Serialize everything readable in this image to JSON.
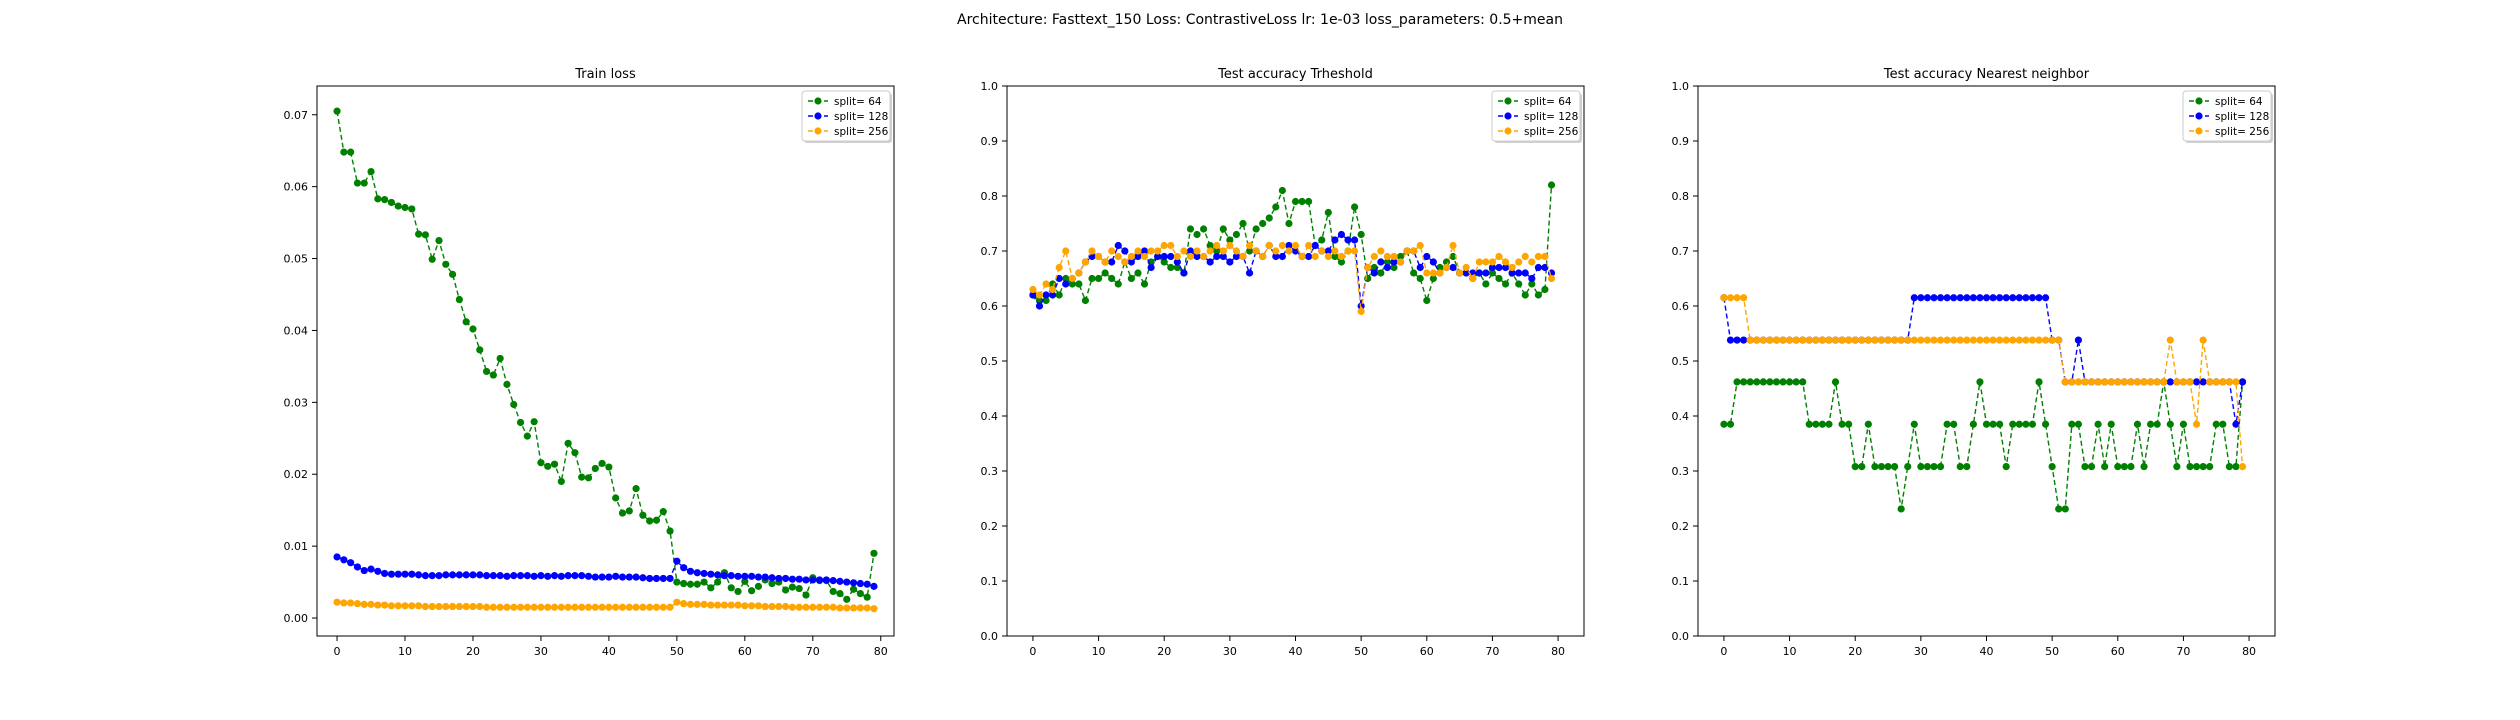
{
  "suptitle": "Architecture: Fasttext_150 Loss: ContrastiveLoss lr: 1e-03 loss_parameters: 0.5+mean",
  "colors": {
    "split64": "#008000",
    "split128": "#0000ff",
    "split256": "#ffa500"
  },
  "chart_data": [
    {
      "type": "line",
      "title": "Train loss",
      "xlabel": "",
      "ylabel": "",
      "xlim": [
        -2.95,
        81.95
      ],
      "ylim": [
        -0.0025,
        0.074
      ],
      "xticks": [
        0,
        10,
        20,
        30,
        40,
        50,
        60,
        70,
        80
      ],
      "xtick_labels": [
        "0",
        "10",
        "20",
        "30",
        "40",
        "50",
        "60",
        "70",
        "80"
      ],
      "yticks": [
        0.0,
        0.01,
        0.02,
        0.03,
        0.04,
        0.05,
        0.06,
        0.07
      ],
      "ytick_labels": [
        "0.00",
        "0.01",
        "0.02",
        "0.03",
        "0.04",
        "0.05",
        "0.06",
        "0.07"
      ],
      "legend": "upper right",
      "series": [
        {
          "name": "split= 64",
          "color": "#008000",
          "marker": "circle",
          "linestyle": "dashed",
          "values": [
            0.0705,
            0.0648,
            0.0648,
            0.0605,
            0.0605,
            0.0621,
            0.0583,
            0.0582,
            0.0578,
            0.0573,
            0.0571,
            0.0569,
            0.0534,
            0.0533,
            0.0499,
            0.0525,
            0.0492,
            0.0478,
            0.0443,
            0.0412,
            0.0402,
            0.0373,
            0.0343,
            0.0338,
            0.0361,
            0.0325,
            0.0297,
            0.0272,
            0.0253,
            0.0273,
            0.0216,
            0.0211,
            0.0214,
            0.019,
            0.0243,
            0.023,
            0.0196,
            0.0195,
            0.0208,
            0.0215,
            0.021,
            0.0167,
            0.0146,
            0.0149,
            0.018,
            0.0143,
            0.0135,
            0.0136,
            0.0148,
            0.0121,
            0.005,
            0.0048,
            0.0047,
            0.0047,
            0.005,
            0.0042,
            0.005,
            0.0063,
            0.0042,
            0.0037,
            0.0051,
            0.0038,
            0.0044,
            0.0053,
            0.0048,
            0.005,
            0.0039,
            0.0043,
            0.0041,
            0.0032,
            0.0056,
            0.0052,
            0.0052,
            0.0037,
            0.0034,
            0.0026,
            0.004,
            0.0034,
            0.0029,
            0.009
          ]
        },
        {
          "name": "split= 128",
          "color": "#0000ff",
          "marker": "circle",
          "linestyle": "dashed",
          "values": [
            0.0085,
            0.0081,
            0.0077,
            0.0071,
            0.0066,
            0.0068,
            0.0065,
            0.0062,
            0.0061,
            0.0061,
            0.0061,
            0.0061,
            0.006,
            0.0059,
            0.0059,
            0.0059,
            0.006,
            0.006,
            0.006,
            0.006,
            0.006,
            0.006,
            0.0059,
            0.0059,
            0.0059,
            0.0058,
            0.0059,
            0.0059,
            0.0059,
            0.0058,
            0.0059,
            0.0058,
            0.0059,
            0.0058,
            0.0059,
            0.0059,
            0.0059,
            0.0058,
            0.0057,
            0.0057,
            0.0057,
            0.0058,
            0.0057,
            0.0057,
            0.0057,
            0.0056,
            0.0055,
            0.0055,
            0.0055,
            0.0055,
            0.0079,
            0.007,
            0.0065,
            0.0063,
            0.0062,
            0.0061,
            0.006,
            0.0059,
            0.0059,
            0.0058,
            0.0058,
            0.0058,
            0.0057,
            0.0057,
            0.0056,
            0.0055,
            0.0055,
            0.0054,
            0.0054,
            0.0053,
            0.0053,
            0.0053,
            0.0053,
            0.0052,
            0.0051,
            0.005,
            0.0049,
            0.0048,
            0.0047,
            0.0044
          ]
        },
        {
          "name": "split= 256",
          "color": "#ffa500",
          "marker": "circle",
          "linestyle": "dashed",
          "values": [
            0.0022,
            0.0021,
            0.0021,
            0.002,
            0.0019,
            0.0019,
            0.0018,
            0.0018,
            0.0017,
            0.0017,
            0.0017,
            0.0017,
            0.0017,
            0.0016,
            0.0016,
            0.0016,
            0.0016,
            0.0016,
            0.0016,
            0.0016,
            0.0016,
            0.0016,
            0.0015,
            0.0015,
            0.0015,
            0.0015,
            0.0015,
            0.0015,
            0.0015,
            0.0015,
            0.0015,
            0.0015,
            0.0015,
            0.0015,
            0.0015,
            0.0015,
            0.0015,
            0.0015,
            0.0015,
            0.0015,
            0.0015,
            0.0015,
            0.0015,
            0.0015,
            0.0015,
            0.0015,
            0.0015,
            0.0015,
            0.0015,
            0.0015,
            0.0022,
            0.002,
            0.0019,
            0.0019,
            0.0019,
            0.0018,
            0.0018,
            0.0018,
            0.0018,
            0.0018,
            0.0017,
            0.0017,
            0.0017,
            0.0016,
            0.0016,
            0.0016,
            0.0016,
            0.0015,
            0.0015,
            0.0015,
            0.0015,
            0.0015,
            0.0015,
            0.0015,
            0.0014,
            0.0014,
            0.0014,
            0.0014,
            0.0014,
            0.0013
          ]
        }
      ]
    },
    {
      "type": "line",
      "title": "Test accuracy Trheshold",
      "xlabel": "",
      "ylabel": "",
      "xlim": [
        -3.95,
        83.95
      ],
      "ylim": [
        0.0,
        1.0
      ],
      "xticks": [
        0,
        10,
        20,
        30,
        40,
        50,
        60,
        70,
        80
      ],
      "xtick_labels": [
        "0",
        "10",
        "20",
        "30",
        "40",
        "50",
        "60",
        "70",
        "80"
      ],
      "yticks": [
        0.0,
        0.1,
        0.2,
        0.3,
        0.4,
        0.5,
        0.6,
        0.7,
        0.8,
        0.9,
        1.0
      ],
      "ytick_labels": [
        "0.0",
        "0.1",
        "0.2",
        "0.3",
        "0.4",
        "0.5",
        "0.6",
        "0.7",
        "0.8",
        "0.9",
        "1.0"
      ],
      "legend": "upper right",
      "series": [
        {
          "name": "split= 64",
          "color": "#008000",
          "marker": "circle",
          "linestyle": "dashed",
          "values": [
            0.62,
            0.61,
            0.61,
            0.64,
            0.62,
            0.65,
            0.64,
            0.64,
            0.61,
            0.65,
            0.65,
            0.66,
            0.65,
            0.64,
            0.68,
            0.65,
            0.66,
            0.64,
            0.68,
            0.69,
            0.68,
            0.67,
            0.67,
            0.66,
            0.74,
            0.73,
            0.74,
            0.71,
            0.7,
            0.74,
            0.72,
            0.73,
            0.75,
            0.7,
            0.74,
            0.75,
            0.76,
            0.78,
            0.81,
            0.75,
            0.79,
            0.79,
            0.79,
            0.71,
            0.72,
            0.77,
            0.69,
            0.68,
            0.7,
            0.78,
            0.73,
            0.65,
            0.67,
            0.66,
            0.68,
            0.67,
            0.69,
            0.7,
            0.66,
            0.65,
            0.61,
            0.65,
            0.67,
            0.68,
            0.69,
            0.66,
            0.66,
            0.65,
            0.66,
            0.64,
            0.66,
            0.65,
            0.64,
            0.66,
            0.64,
            0.62,
            0.64,
            0.62,
            0.63,
            0.82
          ]
        },
        {
          "name": "split= 128",
          "color": "#0000ff",
          "marker": "circle",
          "linestyle": "dashed",
          "values": [
            0.62,
            0.6,
            0.62,
            0.62,
            0.65,
            0.64,
            0.65,
            0.66,
            0.68,
            0.69,
            0.69,
            0.68,
            0.68,
            0.71,
            0.7,
            0.68,
            0.69,
            0.7,
            0.67,
            0.69,
            0.69,
            0.69,
            0.68,
            0.66,
            0.7,
            0.69,
            0.69,
            0.68,
            0.69,
            0.69,
            0.68,
            0.69,
            0.69,
            0.66,
            0.7,
            0.69,
            0.71,
            0.69,
            0.69,
            0.71,
            0.7,
            0.69,
            0.69,
            0.71,
            0.7,
            0.7,
            0.72,
            0.73,
            0.72,
            0.72,
            0.6,
            0.67,
            0.66,
            0.68,
            0.67,
            0.68,
            0.68,
            0.7,
            0.7,
            0.67,
            0.69,
            0.68,
            0.66,
            0.67,
            0.67,
            0.66,
            0.66,
            0.66,
            0.66,
            0.66,
            0.67,
            0.67,
            0.67,
            0.66,
            0.66,
            0.66,
            0.65,
            0.67,
            0.67,
            0.66
          ]
        },
        {
          "name": "split= 256",
          "color": "#ffa500",
          "marker": "circle",
          "linestyle": "dashed",
          "values": [
            0.63,
            0.62,
            0.64,
            0.63,
            0.67,
            0.7,
            0.65,
            0.66,
            0.68,
            0.7,
            0.69,
            0.68,
            0.7,
            0.69,
            0.68,
            0.69,
            0.7,
            0.69,
            0.7,
            0.7,
            0.71,
            0.71,
            0.69,
            0.7,
            0.69,
            0.7,
            0.69,
            0.7,
            0.71,
            0.7,
            0.71,
            0.7,
            0.69,
            0.71,
            0.7,
            0.69,
            0.71,
            0.7,
            0.71,
            0.7,
            0.71,
            0.69,
            0.71,
            0.69,
            0.7,
            0.69,
            0.7,
            0.69,
            0.7,
            0.7,
            0.59,
            0.67,
            0.69,
            0.7,
            0.69,
            0.69,
            0.68,
            0.7,
            0.7,
            0.71,
            0.66,
            0.66,
            0.66,
            0.67,
            0.71,
            0.66,
            0.67,
            0.65,
            0.68,
            0.68,
            0.68,
            0.69,
            0.68,
            0.67,
            0.68,
            0.69,
            0.68,
            0.69,
            0.69,
            0.65
          ]
        }
      ]
    },
    {
      "type": "line",
      "title": "Test accuracy Nearest neighbor",
      "xlabel": "",
      "ylabel": "",
      "xlim": [
        -3.95,
        83.95
      ],
      "ylim": [
        0.0,
        1.0
      ],
      "xticks": [
        0,
        10,
        20,
        30,
        40,
        50,
        60,
        70,
        80
      ],
      "xtick_labels": [
        "0",
        "10",
        "20",
        "30",
        "40",
        "50",
        "60",
        "70",
        "80"
      ],
      "yticks": [
        0.0,
        0.1,
        0.2,
        0.3,
        0.4,
        0.5,
        0.6,
        0.7,
        0.8,
        0.9,
        1.0
      ],
      "ytick_labels": [
        "0.0",
        "0.1",
        "0.2",
        "0.3",
        "0.4",
        "0.5",
        "0.6",
        "0.7",
        "0.8",
        "0.9",
        "1.0"
      ],
      "legend": "upper right",
      "series": [
        {
          "name": "split= 64",
          "color": "#008000",
          "marker": "circle",
          "linestyle": "dashed",
          "values": [
            0.385,
            0.385,
            0.462,
            0.462,
            0.462,
            0.462,
            0.462,
            0.462,
            0.462,
            0.462,
            0.462,
            0.462,
            0.462,
            0.385,
            0.385,
            0.385,
            0.385,
            0.462,
            0.385,
            0.385,
            0.308,
            0.308,
            0.385,
            0.308,
            0.308,
            0.308,
            0.308,
            0.231,
            0.308,
            0.385,
            0.308,
            0.308,
            0.308,
            0.308,
            0.385,
            0.385,
            0.308,
            0.308,
            0.385,
            0.462,
            0.385,
            0.385,
            0.385,
            0.308,
            0.385,
            0.385,
            0.385,
            0.385,
            0.462,
            0.385,
            0.308,
            0.231,
            0.231,
            0.385,
            0.385,
            0.308,
            0.308,
            0.385,
            0.308,
            0.385,
            0.308,
            0.308,
            0.308,
            0.385,
            0.308,
            0.385,
            0.385,
            0.462,
            0.385,
            0.308,
            0.385,
            0.308,
            0.308,
            0.308,
            0.308,
            0.385,
            0.385,
            0.308,
            0.308,
            0.462
          ]
        },
        {
          "name": "split= 128",
          "color": "#0000ff",
          "marker": "circle",
          "linestyle": "dashed",
          "values": [
            0.615,
            0.538,
            0.538,
            0.538,
            0.538,
            0.538,
            0.538,
            0.538,
            0.538,
            0.538,
            0.538,
            0.538,
            0.538,
            0.538,
            0.538,
            0.538,
            0.538,
            0.538,
            0.538,
            0.538,
            0.538,
            0.538,
            0.538,
            0.538,
            0.538,
            0.538,
            0.538,
            0.538,
            0.538,
            0.615,
            0.615,
            0.615,
            0.615,
            0.615,
            0.615,
            0.615,
            0.615,
            0.615,
            0.615,
            0.615,
            0.615,
            0.615,
            0.615,
            0.615,
            0.615,
            0.615,
            0.615,
            0.615,
            0.615,
            0.615,
            0.538,
            0.538,
            0.462,
            0.462,
            0.538,
            0.462,
            0.462,
            0.462,
            0.462,
            0.462,
            0.462,
            0.462,
            0.462,
            0.462,
            0.462,
            0.462,
            0.462,
            0.462,
            0.462,
            0.462,
            0.462,
            0.462,
            0.462,
            0.462,
            0.462,
            0.462,
            0.462,
            0.462,
            0.385,
            0.462
          ]
        },
        {
          "name": "split= 256",
          "color": "#ffa500",
          "marker": "circle",
          "linestyle": "dashed",
          "values": [
            0.615,
            0.615,
            0.615,
            0.615,
            0.538,
            0.538,
            0.538,
            0.538,
            0.538,
            0.538,
            0.538,
            0.538,
            0.538,
            0.538,
            0.538,
            0.538,
            0.538,
            0.538,
            0.538,
            0.538,
            0.538,
            0.538,
            0.538,
            0.538,
            0.538,
            0.538,
            0.538,
            0.538,
            0.538,
            0.538,
            0.538,
            0.538,
            0.538,
            0.538,
            0.538,
            0.538,
            0.538,
            0.538,
            0.538,
            0.538,
            0.538,
            0.538,
            0.538,
            0.538,
            0.538,
            0.538,
            0.538,
            0.538,
            0.538,
            0.538,
            0.538,
            0.538,
            0.462,
            0.462,
            0.462,
            0.462,
            0.462,
            0.462,
            0.462,
            0.462,
            0.462,
            0.462,
            0.462,
            0.462,
            0.462,
            0.462,
            0.462,
            0.462,
            0.538,
            0.462,
            0.462,
            0.462,
            0.385,
            0.538,
            0.462,
            0.462,
            0.462,
            0.462,
            0.462,
            0.308
          ]
        }
      ]
    }
  ]
}
